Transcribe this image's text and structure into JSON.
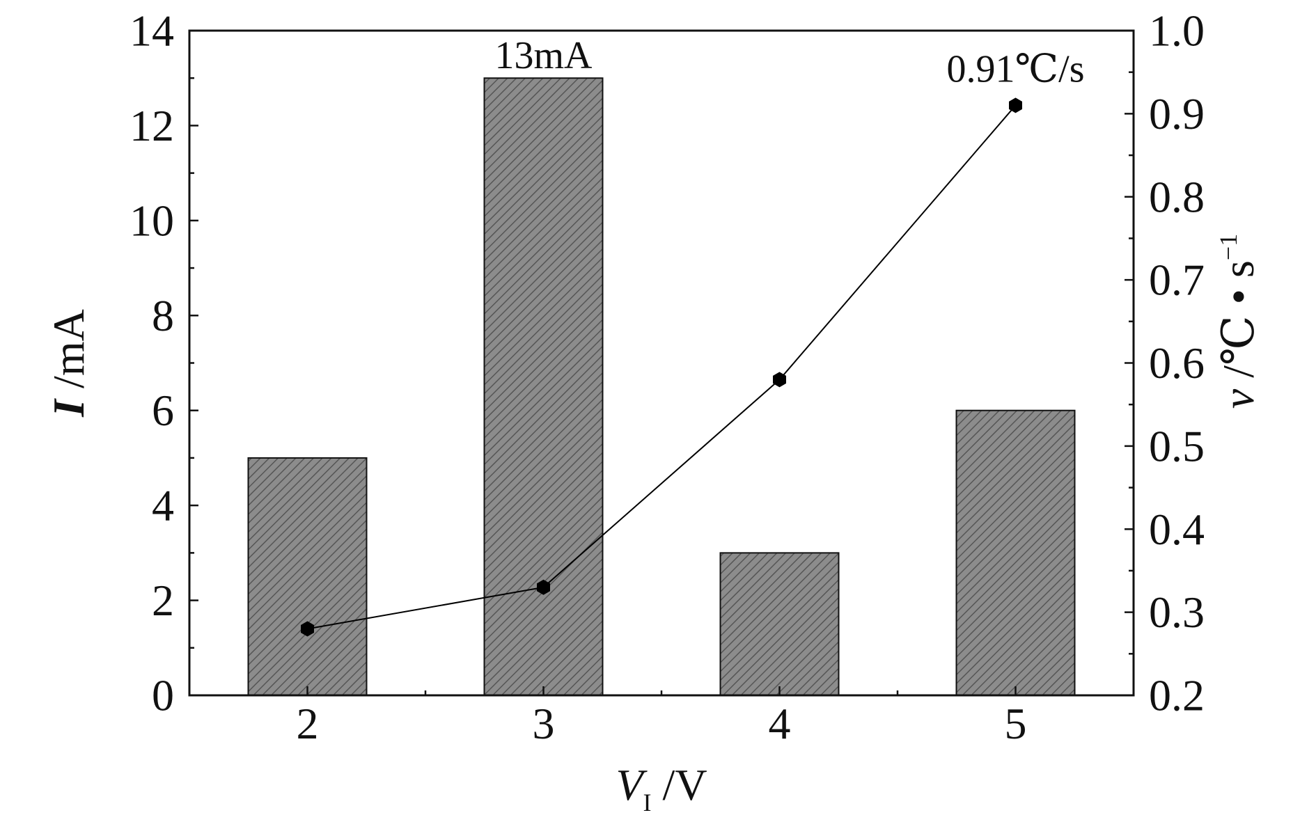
{
  "chart_data": {
    "type": "bar",
    "title": "",
    "categories": [
      "2",
      "3",
      "4",
      "5"
    ],
    "x": [
      2,
      3,
      4,
      5
    ],
    "xlabel": {
      "main": "V",
      "sub": "I",
      "unit": " /V"
    },
    "ylabel": {
      "main": "I",
      "unit": " /mA"
    },
    "y2label": {
      "main": "v",
      "unit": " /℃ • s",
      "sup": "−1"
    },
    "ylim": [
      0,
      14
    ],
    "y2lim": [
      0.2,
      1.0
    ],
    "yticks": [
      "0",
      "2",
      "4",
      "6",
      "8",
      "10",
      "12",
      "14"
    ],
    "y2ticks": [
      "0.2",
      "0.3",
      "0.4",
      "0.5",
      "0.6",
      "0.7",
      "0.8",
      "0.9",
      "1.0"
    ],
    "series": [
      {
        "type": "bar",
        "axis": "left",
        "values": [
          5,
          13,
          3,
          6
        ],
        "color": "#8c8c8c",
        "hatch": "diagonal"
      },
      {
        "type": "line",
        "axis": "right",
        "values": [
          0.28,
          0.33,
          0.58,
          0.91
        ],
        "color": "#000000",
        "marker": "hexagon"
      }
    ],
    "annotations": [
      {
        "text": "13mA",
        "series": 0,
        "index": 1
      },
      {
        "text": "0.91℃/s",
        "series": 1,
        "index": 3
      }
    ],
    "grid": false,
    "legend": "none"
  }
}
